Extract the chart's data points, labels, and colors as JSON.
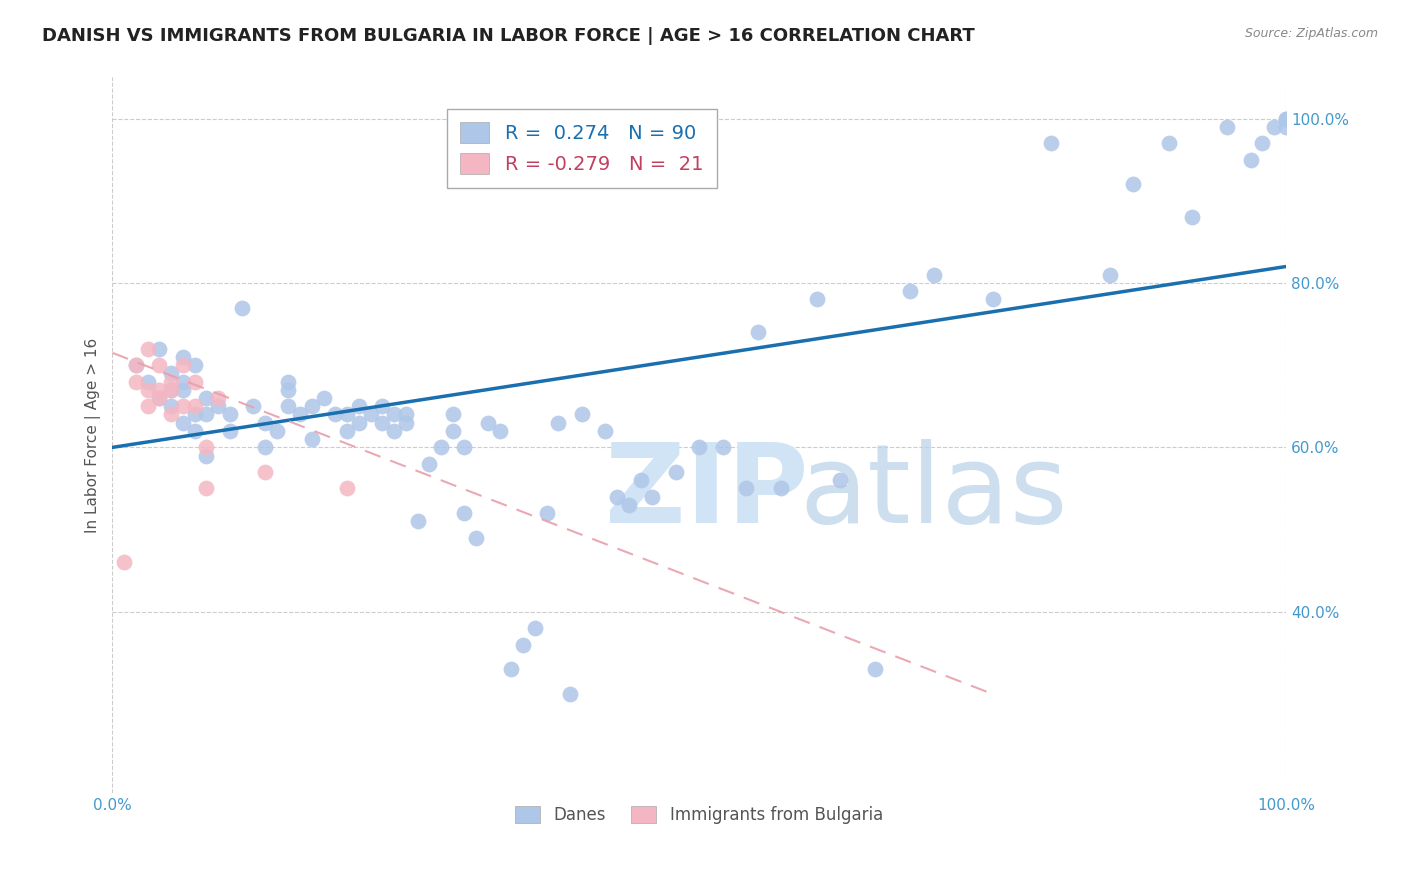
{
  "title": "DANISH VS IMMIGRANTS FROM BULGARIA IN LABOR FORCE | AGE > 16 CORRELATION CHART",
  "source": "Source: ZipAtlas.com",
  "ylabel": "In Labor Force | Age > 16",
  "danes_R": 0.274,
  "danes_N": 90,
  "immigrants_R": -0.279,
  "immigrants_N": 21,
  "danes_color": "#aec6e8",
  "danes_line_color": "#1a6faf",
  "immigrants_color": "#f4b6c2",
  "immigrants_line_color": "#e8a0aa",
  "danes_x": [
    0.02,
    0.03,
    0.04,
    0.04,
    0.05,
    0.05,
    0.05,
    0.06,
    0.06,
    0.06,
    0.06,
    0.07,
    0.07,
    0.07,
    0.08,
    0.08,
    0.08,
    0.09,
    0.1,
    0.1,
    0.11,
    0.12,
    0.13,
    0.13,
    0.14,
    0.15,
    0.15,
    0.15,
    0.16,
    0.17,
    0.17,
    0.18,
    0.19,
    0.2,
    0.2,
    0.21,
    0.21,
    0.22,
    0.23,
    0.23,
    0.24,
    0.24,
    0.25,
    0.25,
    0.26,
    0.27,
    0.28,
    0.29,
    0.29,
    0.3,
    0.3,
    0.31,
    0.32,
    0.33,
    0.34,
    0.35,
    0.36,
    0.37,
    0.38,
    0.39,
    0.4,
    0.42,
    0.43,
    0.44,
    0.45,
    0.46,
    0.48,
    0.5,
    0.52,
    0.54,
    0.55,
    0.57,
    0.6,
    0.62,
    0.65,
    0.68,
    0.7,
    0.75,
    0.8,
    0.85,
    0.87,
    0.9,
    0.92,
    0.95,
    0.97,
    0.98,
    0.99,
    1.0,
    1.0,
    1.0
  ],
  "danes_y": [
    0.7,
    0.68,
    0.66,
    0.72,
    0.67,
    0.65,
    0.69,
    0.63,
    0.67,
    0.68,
    0.71,
    0.64,
    0.62,
    0.7,
    0.64,
    0.66,
    0.59,
    0.65,
    0.64,
    0.62,
    0.77,
    0.65,
    0.6,
    0.63,
    0.62,
    0.65,
    0.68,
    0.67,
    0.64,
    0.61,
    0.65,
    0.66,
    0.64,
    0.62,
    0.64,
    0.63,
    0.65,
    0.64,
    0.63,
    0.65,
    0.62,
    0.64,
    0.63,
    0.64,
    0.51,
    0.58,
    0.6,
    0.62,
    0.64,
    0.6,
    0.52,
    0.49,
    0.63,
    0.62,
    0.33,
    0.36,
    0.38,
    0.52,
    0.63,
    0.3,
    0.64,
    0.62,
    0.54,
    0.53,
    0.56,
    0.54,
    0.57,
    0.6,
    0.6,
    0.55,
    0.74,
    0.55,
    0.78,
    0.56,
    0.33,
    0.79,
    0.81,
    0.78,
    0.97,
    0.81,
    0.92,
    0.97,
    0.88,
    0.99,
    0.95,
    0.97,
    0.99,
    0.99,
    1.0,
    1.0
  ],
  "imm_x": [
    0.01,
    0.02,
    0.02,
    0.03,
    0.03,
    0.03,
    0.04,
    0.04,
    0.04,
    0.05,
    0.05,
    0.05,
    0.06,
    0.06,
    0.07,
    0.07,
    0.08,
    0.08,
    0.09,
    0.13,
    0.2
  ],
  "imm_y": [
    0.46,
    0.68,
    0.7,
    0.67,
    0.72,
    0.65,
    0.66,
    0.67,
    0.7,
    0.64,
    0.67,
    0.68,
    0.65,
    0.7,
    0.68,
    0.65,
    0.55,
    0.6,
    0.66,
    0.57,
    0.55
  ],
  "danes_line_x0": 0.0,
  "danes_line_x1": 1.0,
  "danes_line_y0": 0.6,
  "danes_line_y1": 0.82,
  "imm_line_x0": 0.0,
  "imm_line_x1": 0.75,
  "imm_line_y0": 0.715,
  "imm_line_y1": 0.3,
  "xlim_min": 0.0,
  "xlim_max": 1.0,
  "ylim_min": 0.18,
  "ylim_max": 1.05,
  "ytick_positions": [
    0.4,
    0.6,
    0.8,
    1.0
  ],
  "ytick_labels": [
    "40.0%",
    "60.0%",
    "80.0%",
    "100.0%"
  ],
  "xtick_positions": [
    0.0,
    1.0
  ],
  "xtick_labels": [
    "0.0%",
    "100.0%"
  ],
  "grid_yticks": [
    0.4,
    0.6,
    0.8,
    1.0
  ],
  "watermark_zip_color": "#d0e4f5",
  "watermark_atlas_color": "#b8d0e8",
  "title_fontsize": 13,
  "tick_color": "#4499cc",
  "axis_label_color": "#555555",
  "source_color": "#888888"
}
